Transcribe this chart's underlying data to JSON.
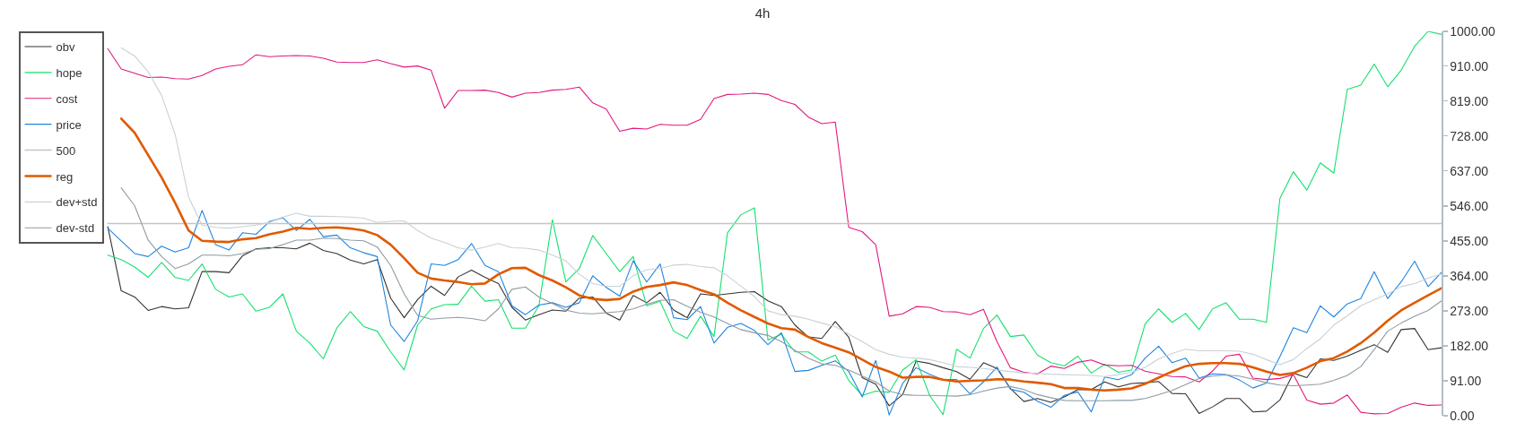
{
  "chart_data": {
    "type": "line",
    "title": "4h",
    "categories": [
      null,
      null,
      null,
      null,
      null,
      null,
      null,
      null,
      null,
      null,
      null,
      null,
      null,
      null,
      null,
      null,
      null,
      null,
      null,
      null,
      null,
      null,
      null,
      null,
      null,
      null,
      null,
      null,
      null,
      null,
      null,
      null,
      null,
      null,
      null,
      null,
      null,
      null,
      null,
      null,
      null,
      null,
      null,
      null,
      null,
      null,
      null,
      null,
      null,
      null,
      null,
      null,
      null,
      null,
      null,
      null,
      null,
      null,
      null,
      null,
      null,
      null,
      null,
      null,
      null,
      null,
      null,
      null,
      null,
      null,
      null,
      null,
      null,
      null,
      null,
      null,
      null,
      null,
      null,
      null,
      null,
      null,
      null,
      null,
      null,
      null,
      null,
      null,
      null,
      null,
      null,
      null,
      null,
      null,
      null,
      null,
      null,
      null,
      null,
      null,
      null,
      null,
      null,
      null,
      null,
      null
    ],
    "series": [
      {
        "name": "obv",
        "color": "#333333",
        "values": [
          null,
          null,
          null,
          null,
          null,
          null,
          492,
          325,
          309,
          274,
          284,
          278,
          281,
          375,
          375,
          372,
          416,
          434,
          437,
          437,
          434,
          449,
          430,
          422,
          405,
          395,
          406,
          306,
          255,
          302,
          337,
          313,
          361,
          379,
          360,
          344,
          282,
          249,
          263,
          275,
          272,
          306,
          309,
          267,
          249,
          313,
          294,
          321,
          275,
          255,
          317,
          313,
          317,
          321,
          323,
          299,
          284,
          236,
          205,
          201,
          245,
          204,
          99,
          82,
          26,
          55,
          142,
          136,
          125,
          115,
          95,
          138,
          123,
          71,
          37,
          45,
          35,
          49,
          68,
          68,
          88,
          75,
          84,
          86,
          89,
          58,
          57,
          6,
          23,
          45,
          45,
          10,
          12,
          41,
          111,
          99,
          148,
          144,
          155,
          170,
          185,
          165,
          224,
          227,
          172,
          177
        ]
      },
      {
        "name": "hope",
        "color": "#16e06f",
        "values": [
          null,
          null,
          null,
          null,
          null,
          null,
          418,
          406,
          387,
          360,
          399,
          360,
          352,
          395,
          329,
          309,
          317,
          272,
          282,
          317,
          220,
          189,
          148,
          228,
          271,
          232,
          220,
          166,
          119,
          236,
          278,
          289,
          290,
          337,
          298,
          302,
          228,
          228,
          286,
          510,
          348,
          383,
          469,
          422,
          375,
          414,
          286,
          298,
          220,
          201,
          259,
          206,
          476,
          523,
          541,
          197,
          212,
          166,
          166,
          142,
          158,
          92,
          53,
          64,
          61,
          119,
          146,
          53,
          3,
          173,
          150,
          227,
          262,
          206,
          210,
          158,
          138,
          130,
          155,
          111,
          134,
          113,
          119,
          239,
          278,
          243,
          266,
          224,
          278,
          294,
          251,
          251,
          243,
          565,
          635,
          587,
          658,
          631,
          849,
          860,
          915,
          856,
          899,
          961,
          1000,
          992
        ]
      },
      {
        "name": "cost",
        "color": "#e3197f",
        "values": [
          null,
          null,
          null,
          null,
          null,
          null,
          955,
          902,
          891,
          880,
          881,
          877,
          876,
          885,
          902,
          909,
          913,
          939,
          934,
          936,
          937,
          936,
          930,
          920,
          919,
          919,
          926,
          916,
          907,
          910,
          899,
          800,
          846,
          846,
          847,
          841,
          829,
          839,
          841,
          847,
          849,
          855,
          814,
          798,
          740,
          748,
          746,
          758,
          756,
          756,
          771,
          825,
          836,
          837,
          839,
          836,
          820,
          810,
          777,
          760,
          764,
          490,
          479,
          445,
          259,
          265,
          284,
          282,
          271,
          270,
          263,
          277,
          193,
          125,
          113,
          109,
          129,
          123,
          139,
          145,
          132,
          130,
          131,
          116,
          109,
          102,
          101,
          88,
          116,
          155,
          160,
          98,
          94,
          97,
          107,
          41,
          30,
          33,
          54,
          9,
          5,
          6,
          22,
          33,
          27,
          28
        ]
      },
      {
        "name": "price",
        "color": "#1e84e0",
        "values": [
          null,
          null,
          null,
          null,
          null,
          null,
          488,
          455,
          422,
          414,
          441,
          426,
          437,
          534,
          445,
          431,
          476,
          472,
          505,
          515,
          482,
          511,
          466,
          470,
          437,
          424,
          414,
          236,
          193,
          247,
          395,
          391,
          406,
          448,
          391,
          375,
          286,
          263,
          288,
          294,
          282,
          294,
          364,
          334,
          311,
          403,
          348,
          395,
          255,
          250,
          284,
          189,
          230,
          240,
          222,
          185,
          216,
          115,
          118,
          131,
          143,
          115,
          49,
          144,
          2,
          84,
          125,
          108,
          94,
          94,
          57,
          88,
          127,
          69,
          61,
          38,
          22,
          53,
          62,
          10,
          101,
          94,
          107,
          150,
          181,
          138,
          150,
          98,
          109,
          107,
          93,
          72,
          85,
          154,
          229,
          216,
          286,
          257,
          291,
          305,
          375,
          305,
          348,
          402,
          336,
          373
        ]
      },
      {
        "name": "500",
        "color": "#c4c4c4",
        "values": [
          null,
          null,
          null,
          null,
          null,
          null,
          500,
          500,
          500,
          500,
          500,
          500,
          500,
          500,
          500,
          500,
          500,
          500,
          500,
          500,
          500,
          500,
          500,
          500,
          500,
          500,
          500,
          500,
          500,
          500,
          500,
          500,
          500,
          500,
          500,
          500,
          500,
          500,
          500,
          500,
          500,
          500,
          500,
          500,
          500,
          500,
          500,
          500,
          500,
          500,
          500,
          500,
          500,
          500,
          500,
          500,
          500,
          500,
          500,
          500,
          500,
          500,
          500,
          500,
          500,
          500,
          500,
          500,
          500,
          500,
          500,
          500,
          500,
          500,
          500,
          500,
          500,
          500,
          500,
          500,
          500,
          500,
          500,
          500,
          500,
          500,
          500,
          500,
          500,
          500,
          500,
          500,
          500,
          500,
          500,
          500,
          500,
          500,
          500,
          500,
          500,
          500,
          500,
          500,
          500,
          500
        ]
      },
      {
        "name": "reg",
        "color": "#e05a00",
        "values": [
          null,
          null,
          null,
          null,
          null,
          null,
          null,
          773,
          736,
          678,
          620,
          554,
          482,
          455,
          453,
          452,
          459,
          462,
          472,
          479,
          489,
          486,
          489,
          490,
          487,
          482,
          470,
          445,
          410,
          372,
          357,
          352,
          348,
          342,
          344,
          368,
          384,
          385,
          366,
          352,
          334,
          313,
          304,
          301,
          304,
          323,
          335,
          340,
          347,
          340,
          327,
          316,
          294,
          274,
          257,
          240,
          228,
          224,
          205,
          189,
          177,
          165,
          146,
          127,
          115,
          99,
          101,
          101,
          94,
          89,
          91,
          92,
          95,
          94,
          89,
          86,
          82,
          72,
          72,
          68,
          66,
          68,
          71,
          83,
          99,
          115,
          129,
          135,
          137,
          137,
          135,
          126,
          115,
          106,
          111,
          125,
          142,
          150,
          167,
          189,
          216,
          247,
          274,
          294,
          313,
          332
        ]
      },
      {
        "name": "dev+std",
        "color": "#c9d1d6",
        "values": [
          null,
          null,
          null,
          null,
          null,
          null,
          null,
          957,
          936,
          895,
          833,
          732,
          569,
          496,
          490,
          488,
          492,
          496,
          503,
          517,
          527,
          519,
          519,
          518,
          517,
          514,
          503,
          506,
          507,
          482,
          462,
          451,
          437,
          431,
          439,
          448,
          437,
          436,
          431,
          418,
          403,
          368,
          344,
          337,
          337,
          364,
          380,
          383,
          392,
          394,
          388,
          385,
          364,
          337,
          310,
          273,
          263,
          259,
          251,
          241,
          232,
          212,
          193,
          172,
          160,
          152,
          150,
          146,
          138,
          128,
          126,
          123,
          119,
          115,
          111,
          110,
          108,
          107,
          106,
          105,
          102,
          107,
          113,
          126,
          148,
          162,
          173,
          169,
          169,
          169,
          168,
          160,
          146,
          133,
          146,
          175,
          200,
          236,
          260,
          286,
          302,
          317,
          336,
          344,
          358,
          369
        ]
      },
      {
        "name": "dev-std",
        "color": "#8d9ba4",
        "values": [
          null,
          null,
          null,
          null,
          null,
          null,
          null,
          593,
          546,
          457,
          414,
          383,
          395,
          418,
          418,
          416,
          422,
          433,
          435,
          445,
          457,
          457,
          462,
          461,
          457,
          455,
          439,
          391,
          317,
          261,
          251,
          254,
          256,
          253,
          247,
          278,
          329,
          335,
          309,
          292,
          275,
          267,
          265,
          268,
          271,
          278,
          290,
          300,
          302,
          285,
          269,
          257,
          240,
          224,
          216,
          209,
          193,
          170,
          150,
          135,
          131,
          119,
          103,
          88,
          64,
          55,
          53,
          53,
          52,
          51,
          55,
          64,
          72,
          76,
          68,
          55,
          47,
          40,
          39,
          39,
          39,
          40,
          40,
          45,
          55,
          66,
          81,
          97,
          103,
          106,
          103,
          95,
          86,
          80,
          78,
          80,
          82,
          92,
          105,
          128,
          172,
          220,
          241,
          259,
          274,
          299
        ]
      }
    ],
    "ylim": [
      0,
      1000
    ],
    "yticks": [
      {
        "value": 0,
        "label": "0.00"
      },
      {
        "value": 91,
        "label": "91.00"
      },
      {
        "value": 182,
        "label": "182.00"
      },
      {
        "value": 273,
        "label": "273.00"
      },
      {
        "value": 364,
        "label": "364.00"
      },
      {
        "value": 455,
        "label": "455.00"
      },
      {
        "value": 546,
        "label": "546.00"
      },
      {
        "value": 637,
        "label": "637.00"
      },
      {
        "value": 728,
        "label": "728.00"
      },
      {
        "value": 819,
        "label": "819.00"
      },
      {
        "value": 910,
        "label": "910.00"
      },
      {
        "value": 1000,
        "label": "1000.00"
      }
    ],
    "legend": "top left",
    "tick_labels": "y"
  }
}
